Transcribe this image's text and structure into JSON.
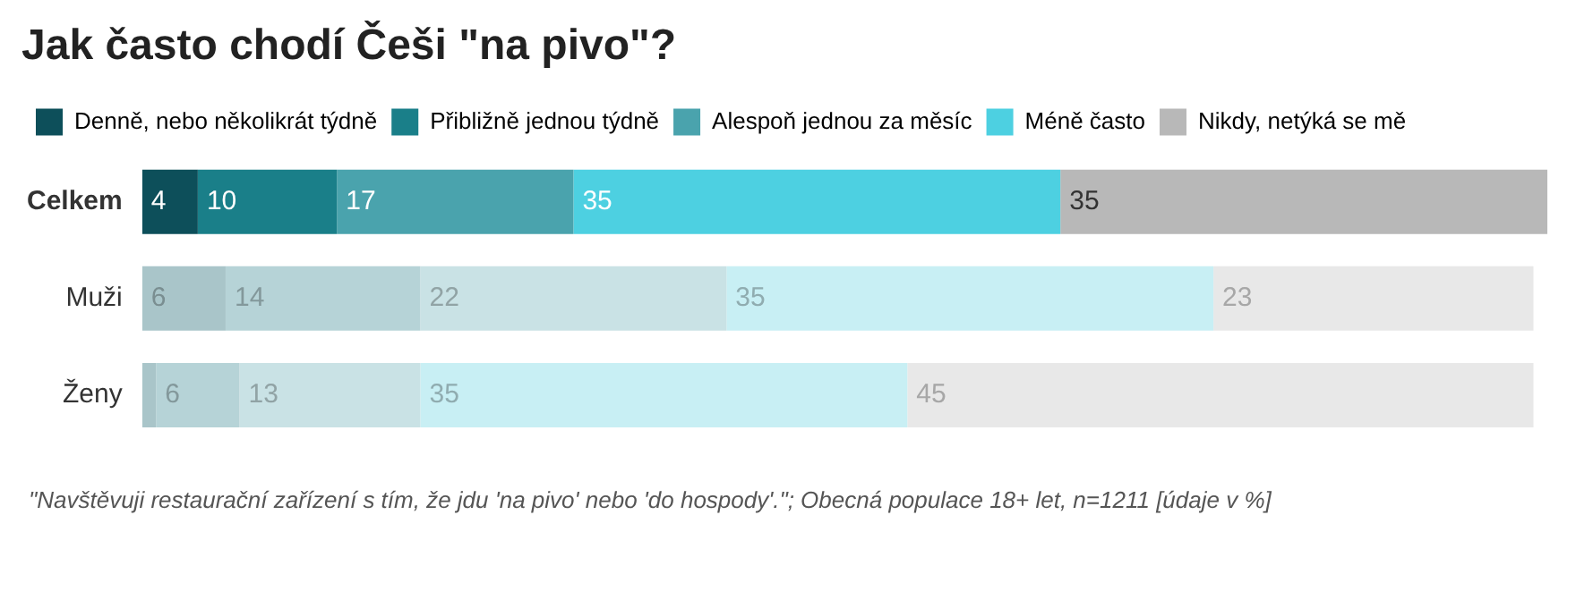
{
  "chart_data": {
    "type": "bar",
    "orientation": "horizontal",
    "stacked": true,
    "title": "Jak často chodí Češi \"na pivo\"?",
    "categories": [
      "Celkem",
      "Muži",
      "Ženy"
    ],
    "series": [
      {
        "name": "Denně, nebo několikrát týdně",
        "color": "#0d4f5a",
        "colors": [
          "#0d4f5a",
          "#a9c5c9",
          "#a9c5c9"
        ],
        "values": [
          4,
          6,
          1
        ],
        "value_labels": [
          "4",
          "6",
          null
        ]
      },
      {
        "name": "Přibližně jednou týdně",
        "color": "#1a7f89",
        "colors": [
          "#1a7f89",
          "#b6d3d7",
          "#b6d3d7"
        ],
        "values": [
          10,
          14,
          6
        ],
        "value_labels": [
          "10",
          "14",
          "6"
        ]
      },
      {
        "name": "Alespoň jednou za měsíc",
        "color": "#4aa3ad",
        "colors": [
          "#4aa3ad",
          "#c9e2e5",
          "#c9e2e5"
        ],
        "values": [
          17,
          22,
          13
        ],
        "value_labels": [
          "17",
          "22",
          "13"
        ]
      },
      {
        "name": "Méně často",
        "color": "#4dd0e1",
        "colors": [
          "#4dd0e1",
          "#c8eff4",
          "#c8eff4"
        ],
        "values": [
          35,
          35,
          35
        ],
        "value_labels": [
          "35",
          "35",
          "35"
        ]
      },
      {
        "name": "Nikdy, netýká se mě",
        "color": "#b8b8b8",
        "colors": [
          "#b8b8b8",
          "#e8e8e8",
          "#e8e8e8"
        ],
        "values": [
          35,
          23,
          45
        ],
        "value_labels": [
          "35",
          "23",
          "45"
        ]
      }
    ],
    "legend": "top",
    "tick_labels": "y",
    "annotations": [
      "\"Navštěvuji restaurační zařízení s tím, že jdu 'na pivo' nebo 'do hospody'.\"; Obecná populace 18+ let, n=1211 [údaje v %]"
    ]
  }
}
